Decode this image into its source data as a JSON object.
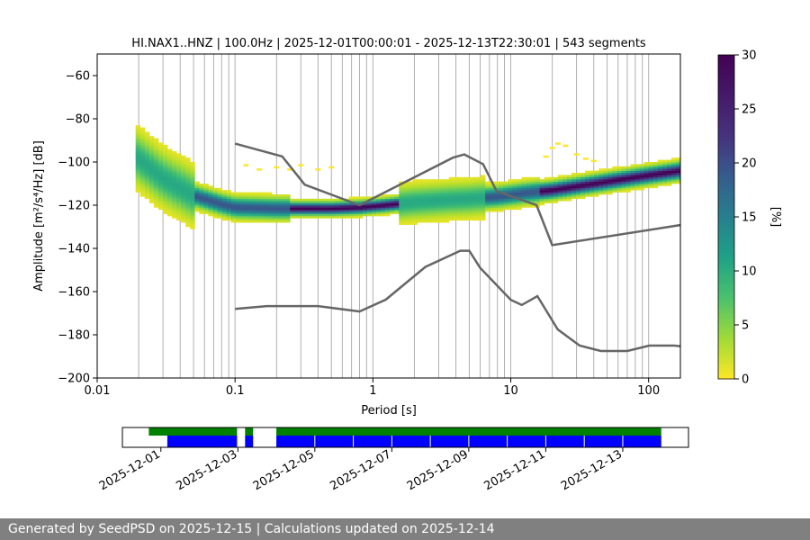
{
  "chart_data": [
    {
      "type": "heatmap",
      "title": "HI.NAX1..HNZ | 100.0Hz | 2025-12-01T00:00:01 - 2025-12-13T22:30:01 | 543 segments",
      "xlabel": "Period [s]",
      "ylabel": "Amplitude [m²/s⁴/Hz] [dB]",
      "x_scale": "log",
      "xlim": [
        0.01,
        170
      ],
      "ylim": [
        -200,
        -50
      ],
      "x_ticks": [
        0.01,
        0.1,
        1,
        10,
        100
      ],
      "x_tick_labels": [
        "0.01",
        "0.1",
        "1",
        "10",
        "100"
      ],
      "y_ticks": [
        -60,
        -80,
        -100,
        -120,
        -140,
        -160,
        -180,
        -200
      ],
      "y_tick_labels": [
        "−60",
        "−80",
        "−100",
        "−120",
        "−140",
        "−160",
        "−180",
        "−200"
      ],
      "grid": "vertical at periods",
      "colorbar": {
        "label": "[%]",
        "range": [
          0,
          30
        ],
        "ticks": [
          0,
          5,
          10,
          15,
          20,
          25,
          30
        ],
        "colormap": "viridis_r"
      },
      "psd_mode": {
        "period": [
          0.019,
          0.03,
          0.05,
          0.08,
          0.1,
          0.2,
          0.5,
          0.8,
          1.2,
          2,
          3.5,
          5,
          8,
          12,
          20,
          40,
          80,
          170
        ],
        "db": [
          -98,
          -108,
          -116,
          -120,
          -121.5,
          -122,
          -122,
          -121.5,
          -120.5,
          -119,
          -118,
          -117.5,
          -116.5,
          -115,
          -113.5,
          -110.5,
          -107.5,
          -104.5
        ]
      },
      "noise_models": [
        {
          "name": "high",
          "period": [
            0.1,
            0.22,
            0.32,
            0.8,
            3.8,
            4.6,
            6.3,
            7.9,
            15.4,
            20,
            354.8
          ],
          "db": [
            -91.5,
            -97.4,
            -110.5,
            -120,
            -98,
            -96.5,
            -101,
            -113.5,
            -120,
            -138.5,
            -126
          ]
        },
        {
          "name": "low",
          "period": [
            0.1,
            0.17,
            0.4,
            0.8,
            1.24,
            2.4,
            4.3,
            5,
            6,
            10,
            12,
            15.6,
            21.9,
            31.6,
            45,
            70,
            101,
            154,
            328
          ],
          "db": [
            -168,
            -166.7,
            -166.7,
            -169.2,
            -163.7,
            -148.6,
            -141.1,
            -141.1,
            -149,
            -163.8,
            -166.2,
            -162.1,
            -177.5,
            -185,
            -187.5,
            -187.5,
            -185,
            -185,
            -187.5
          ]
        }
      ]
    },
    {
      "type": "timeline",
      "x_tick_labels": [
        "2025-12-01",
        "2025-12-03",
        "2025-12-05",
        "2025-12-07",
        "2025-12-09",
        "2025-12-11",
        "2025-12-13"
      ],
      "x_ticks": [
        "2025-12-01",
        "2025-12-03",
        "2025-12-05",
        "2025-12-07",
        "2025-12-09",
        "2025-12-11",
        "2025-12-13"
      ],
      "xlim": [
        "2025-11-30T00:00",
        "2025-12-14T17:00"
      ],
      "data_available": {
        "color": "#008000",
        "intervals": [
          [
            "2025-11-30T16:30",
            "2025-12-02T23:30"
          ],
          [
            "2025-12-03T04:30",
            "2025-12-03T09:30"
          ],
          [
            "2025-12-04T00:00",
            "2025-12-14T00:00"
          ]
        ]
      },
      "psd_computed": {
        "color": "#0000ff",
        "intervals": [
          [
            "2025-12-01T04:00",
            "2025-12-02T23:30"
          ],
          [
            "2025-12-03T04:30",
            "2025-12-03T09:30"
          ],
          [
            "2025-12-04T00:00",
            "2025-12-14T00:00"
          ]
        ]
      }
    }
  ],
  "footer": {
    "text": "Generated by SeedPSD on 2025-12-15 | Calculations updated on 2025-12-14"
  },
  "colors": {
    "noise_model": "#666666",
    "grid": "#b0b0b0",
    "footer_bg": "#808080"
  }
}
